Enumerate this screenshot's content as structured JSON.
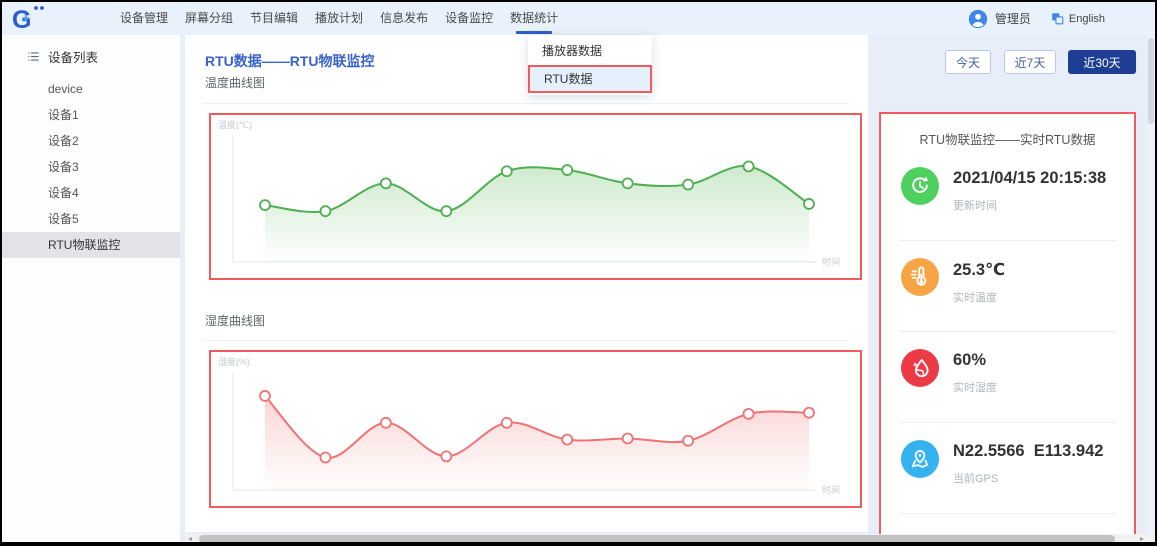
{
  "nav": {
    "items": [
      "设备管理",
      "屏幕分组",
      "节目编辑",
      "播放计划",
      "信息发布",
      "设备监控",
      "数据统计"
    ],
    "active_item": "数据统计",
    "user_label": "管理员",
    "language_label": "English"
  },
  "dropdown": {
    "items": [
      {
        "label": "播放器数据",
        "selected": false
      },
      {
        "label": "RTU数据",
        "selected": true
      }
    ]
  },
  "sidebar": {
    "header": "设备列表",
    "items": [
      "device",
      "设备1",
      "设备2",
      "设备3",
      "设备4",
      "设备5",
      "RTU物联监控"
    ],
    "selected": "RTU物联监控"
  },
  "main": {
    "title": "RTU数据——RTU物联监控",
    "range_buttons": [
      {
        "label": "今天",
        "active": false
      },
      {
        "label": "近7天",
        "active": false
      },
      {
        "label": "近30天",
        "active": true
      }
    ]
  },
  "chart_data": [
    {
      "type": "line",
      "title": "温度曲线图",
      "ylabel": "温度(℃)",
      "xlabel": "时间",
      "x": [
        1,
        2,
        3,
        4,
        5,
        6,
        7,
        8,
        9,
        10
      ],
      "series": [
        {
          "name": "温度",
          "color": "#4caf50",
          "fill_from": "rgba(92,184,92,0.30)",
          "fill_to": "rgba(92,184,92,0.02)",
          "values": [
            47,
            42,
            65,
            42,
            75,
            76,
            65,
            64,
            79,
            48
          ]
        }
      ],
      "ylim": [
        0,
        100
      ],
      "grid": false,
      "legend": false,
      "markers": true
    },
    {
      "type": "line",
      "title": "湿度曲线图",
      "ylabel": "湿度(%)",
      "xlabel": "时间",
      "x": [
        1,
        2,
        3,
        4,
        5,
        6,
        7,
        8,
        9,
        10
      ],
      "series": [
        {
          "name": "湿度",
          "color": "#f07373",
          "fill_from": "rgba(240,115,115,0.30)",
          "fill_to": "rgba(240,115,115,0.02)",
          "values": [
            84,
            29,
            60,
            30,
            60,
            45,
            46,
            44,
            68,
            69
          ]
        }
      ],
      "ylim": [
        0,
        100
      ],
      "grid": false,
      "legend": false,
      "markers": true
    }
  ],
  "info_panel": {
    "title": "RTU物联监控——实时RTU数据",
    "items": [
      {
        "icon": "refresh-clock-icon",
        "color": "#4ed05f",
        "value": "2021/04/15 20:15:38",
        "label": "更新时间"
      },
      {
        "icon": "thermometer-icon",
        "color": "#f7a544",
        "value": "25.3℃",
        "label": "实时温度"
      },
      {
        "icon": "droplet-icon",
        "color": "#ec3b47",
        "value": "60%",
        "label": "实时湿度"
      },
      {
        "icon": "map-pin-icon",
        "color": "#34b3f0",
        "value": "N22.5566  E113.942",
        "label": "当前GPS"
      }
    ]
  },
  "annotation_color": "#f05c5c"
}
